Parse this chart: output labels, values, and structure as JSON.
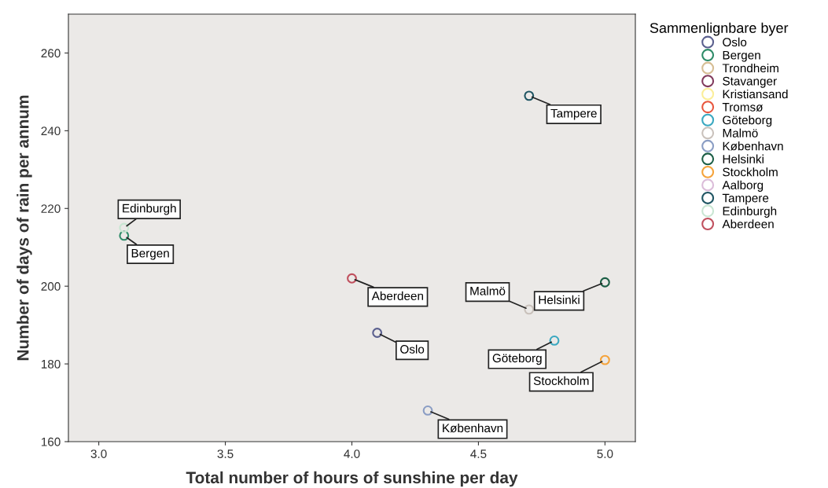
{
  "chart_data": {
    "type": "scatter",
    "xlabel": "Total number of hours of sunshine per day",
    "ylabel": "Number of days of rain per annum",
    "legend_title": "Sammenlignbare byer",
    "legend": "top right",
    "marker": "circle",
    "grid": false,
    "xlim": [
      2.88,
      5.12
    ],
    "ylim": [
      160,
      270
    ],
    "xticks": [
      {
        "value": 3.0,
        "label": "3.0"
      },
      {
        "value": 3.5,
        "label": "3.5"
      },
      {
        "value": 4.0,
        "label": "4.0"
      },
      {
        "value": 4.5,
        "label": "4.5"
      },
      {
        "value": 5.0,
        "label": "5.0"
      }
    ],
    "yticks": [
      160,
      180,
      200,
      220,
      240,
      260
    ],
    "series": [
      {
        "name": "Oslo",
        "color": "#5a5f8e",
        "x": [
          4.1
        ],
        "values": [
          188
        ]
      },
      {
        "name": "Bergen",
        "color": "#2e8b68",
        "x": [
          3.1
        ],
        "values": [
          213
        ]
      },
      {
        "name": "Trondheim",
        "color": "#d6bd94"
      },
      {
        "name": "Stavanger",
        "color": "#80395c"
      },
      {
        "name": "Kristiansand",
        "color": "#fbee9a"
      },
      {
        "name": "Tromsø",
        "color": "#e8553d"
      },
      {
        "name": "Göteborg",
        "color": "#3aa8c0",
        "x": [
          4.8
        ],
        "values": [
          186
        ]
      },
      {
        "name": "Malmö",
        "color": "#c9c1bb",
        "x": [
          4.7
        ],
        "values": [
          194
        ]
      },
      {
        "name": "København",
        "color": "#8a9dc4",
        "x": [
          4.3
        ],
        "values": [
          168
        ]
      },
      {
        "name": "Helsinki",
        "color": "#1b5e45",
        "x": [
          5.0
        ],
        "values": [
          201
        ]
      },
      {
        "name": "Stockholm",
        "color": "#f5a33a",
        "x": [
          5.0
        ],
        "values": [
          181
        ]
      },
      {
        "name": "Aalborg",
        "color": "#dbbcd9"
      },
      {
        "name": "Tampere",
        "color": "#1f5563",
        "x": [
          4.7
        ],
        "values": [
          249
        ]
      },
      {
        "name": "Edinburgh",
        "color": "#c8e6d2",
        "x": [
          3.1
        ],
        "values": [
          215
        ]
      },
      {
        "name": "Aberdeen",
        "color": "#c0505e",
        "x": [
          4.0
        ],
        "values": [
          202
        ]
      }
    ],
    "annotations": [
      {
        "text": "Tampere",
        "x": 4.7,
        "y": 249
      },
      {
        "text": "Edinburgh",
        "x": 3.1,
        "y": 215
      },
      {
        "text": "Bergen",
        "x": 3.1,
        "y": 213
      },
      {
        "text": "Aberdeen",
        "x": 4.0,
        "y": 202
      },
      {
        "text": "Helsinki",
        "x": 5.0,
        "y": 201
      },
      {
        "text": "Malmö",
        "x": 4.7,
        "y": 194
      },
      {
        "text": "Oslo",
        "x": 4.1,
        "y": 188
      },
      {
        "text": "Göteborg",
        "x": 4.8,
        "y": 186
      },
      {
        "text": "Stockholm",
        "x": 5.0,
        "y": 181
      },
      {
        "text": "København",
        "x": 4.3,
        "y": 168
      }
    ]
  }
}
